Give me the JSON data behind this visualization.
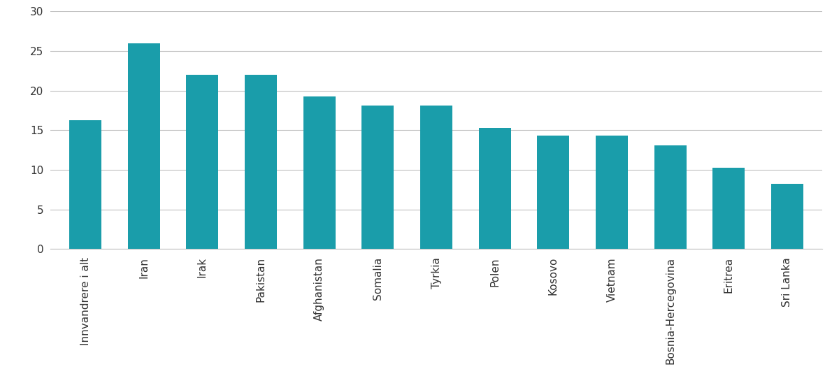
{
  "categories": [
    "Innvandrere i alt",
    "Iran",
    "Irak",
    "Pakistan",
    "Afghanistan",
    "Somalia",
    "Tyrkia",
    "Polen",
    "Kosovo",
    "Vietnam",
    "Bosnia-Hercegovina",
    "Eritrea",
    "Sri Lanka"
  ],
  "values": [
    16.3,
    26.0,
    22.0,
    22.0,
    19.3,
    18.1,
    18.1,
    15.3,
    14.3,
    14.3,
    13.1,
    10.3,
    8.2
  ],
  "bar_color": "#1a9daa",
  "ylim": [
    0,
    30
  ],
  "yticks": [
    0,
    5,
    10,
    15,
    20,
    25,
    30
  ],
  "grid_color": "#c0c0c0",
  "background_color": "#ffffff",
  "tick_fontsize": 11,
  "label_fontsize": 11
}
